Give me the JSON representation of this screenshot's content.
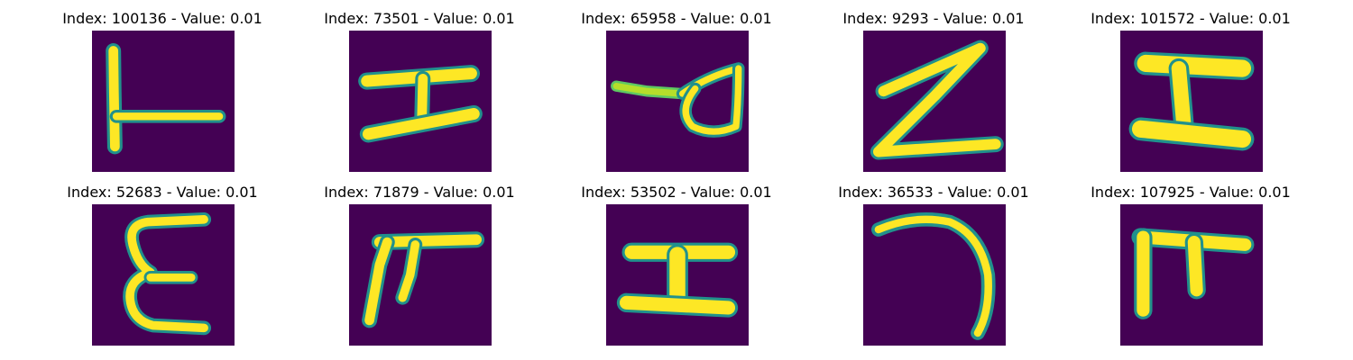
{
  "colors": {
    "background": "#440154",
    "low": "#21918c",
    "mid": "#5ec962",
    "high": "#fde725"
  },
  "panels": [
    {
      "title": "Index: 100136 - Value: 0.01",
      "glyph": "L-cross"
    },
    {
      "title": "Index: 73501 - Value: 0.01",
      "glyph": "I-slanted"
    },
    {
      "title": "Index: 65958 - Value: 0.01",
      "glyph": "a-loop"
    },
    {
      "title": "Index: 9293 - Value: 0.01",
      "glyph": "Z-zigzag"
    },
    {
      "title": "Index: 101572 - Value: 0.01",
      "glyph": "I-bold"
    },
    {
      "title": "Index: 52683 - Value: 0.01",
      "glyph": "E-curvy"
    },
    {
      "title": "Index: 71879 - Value: 0.01",
      "glyph": "pi-shape"
    },
    {
      "title": "Index: 53502 - Value: 0.01",
      "glyph": "I-block"
    },
    {
      "title": "Index: 36533 - Value: 0.01",
      "glyph": "hook"
    },
    {
      "title": "Index: 107925 - Value: 0.01",
      "glyph": "pi-bold"
    }
  ]
}
